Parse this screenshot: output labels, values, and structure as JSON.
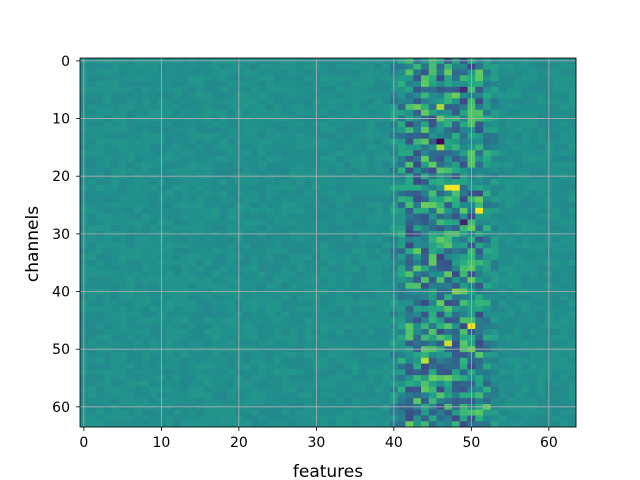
{
  "chart_data": {
    "type": "heatmap",
    "title": "",
    "xlabel": "features",
    "ylabel": "channels",
    "rows": 64,
    "cols": 64,
    "xlim": [
      -0.5,
      63.5
    ],
    "ylim": [
      63.5,
      -0.5
    ],
    "y_inverted": true,
    "x_ticks": [
      0,
      10,
      20,
      30,
      40,
      50,
      60
    ],
    "y_ticks": [
      0,
      10,
      20,
      30,
      40,
      50,
      60
    ],
    "grid": true,
    "colormap": "viridis",
    "value_range": [
      -1,
      1
    ],
    "background_value": 0.0,
    "structure": "features 0-40 near-zero low-variance values; strong-variance band across features 40-53 for all channels",
    "highlighted_cells": [
      {
        "channel": 14,
        "feature": 46,
        "value": -1.0
      },
      {
        "channel": 22,
        "feature": 48,
        "value": 1.0
      },
      {
        "channel": 22,
        "feature": 47,
        "value": 0.95
      },
      {
        "channel": 26,
        "feature": 51,
        "value": 0.95
      },
      {
        "channel": 46,
        "feature": 50,
        "value": 0.95
      },
      {
        "channel": 49,
        "feature": 47,
        "value": 0.85
      },
      {
        "channel": 52,
        "feature": 44,
        "value": 0.8
      },
      {
        "channel": 8,
        "feature": 46,
        "value": 0.75
      },
      {
        "channel": 15,
        "feature": 46,
        "value": 0.7
      },
      {
        "channel": 5,
        "feature": 49,
        "value": -0.75
      },
      {
        "channel": 28,
        "feature": 49,
        "value": -0.8
      },
      {
        "channel": 6,
        "feature": 48,
        "value": 0.55
      },
      {
        "channel": 40,
        "feature": 48,
        "value": 0.6
      },
      {
        "channel": 55,
        "feature": 45,
        "value": 0.55
      },
      {
        "channel": 57,
        "feature": 44,
        "value": 0.5
      },
      {
        "channel": 25,
        "feature": 44,
        "value": 0.55
      },
      {
        "channel": 18,
        "feature": 42,
        "value": 0.45
      },
      {
        "channel": 60,
        "feature": 52,
        "value": 0.5
      },
      {
        "channel": 34,
        "feature": 46,
        "value": -0.6
      },
      {
        "channel": 37,
        "feature": 48,
        "value": -0.55
      }
    ]
  }
}
